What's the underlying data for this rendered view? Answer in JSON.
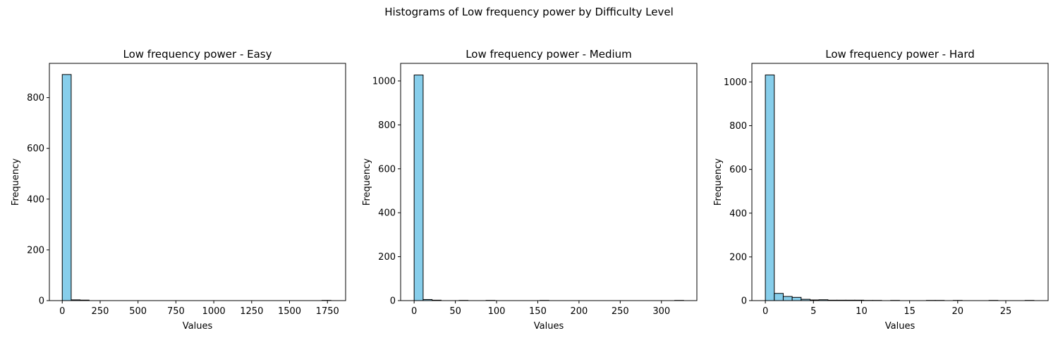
{
  "figure": {
    "suptitle": "Histograms of Low frequency power by Difficulty Level"
  },
  "chart_data": [
    {
      "type": "bar",
      "title": "Low frequency power - Easy",
      "xlabel": "Values",
      "ylabel": "Frequency",
      "xlim": [
        -85,
        1870
      ],
      "ylim": [
        0,
        935
      ],
      "xticks": [
        0,
        250,
        500,
        750,
        1000,
        1250,
        1500,
        1750
      ],
      "yticks": [
        0,
        200,
        400,
        600,
        800
      ],
      "bin_width": 59,
      "bin_starts": [
        0,
        59,
        118,
        1714
      ],
      "values": [
        891,
        3,
        2,
        1
      ],
      "bar_color": "#87ceeb",
      "edge_color": "#000000"
    },
    {
      "type": "bar",
      "title": "Low frequency power - Medium",
      "xlabel": "Values",
      "ylabel": "Frequency",
      "xlim": [
        -16.4,
        343
      ],
      "ylim": [
        0,
        1080
      ],
      "xticks": [
        0,
        50,
        100,
        150,
        200,
        250,
        300
      ],
      "yticks": [
        0,
        200,
        400,
        600,
        800,
        1000
      ],
      "bin_width": 10.9,
      "bin_starts": [
        0,
        10.9,
        21.8,
        54.5,
        87.2,
        152.6,
        316.1
      ],
      "values": [
        1027,
        5,
        2,
        1,
        1,
        1,
        1
      ],
      "bar_color": "#87ceeb",
      "edge_color": "#000000"
    },
    {
      "type": "bar",
      "title": "Low frequency power - Hard",
      "xlabel": "Values",
      "ylabel": "Frequency",
      "xlim": [
        -1.4,
        29.4
      ],
      "ylim": [
        0,
        1085
      ],
      "xticks": [
        0,
        5,
        10,
        15,
        20,
        25
      ],
      "yticks": [
        0,
        200,
        400,
        600,
        800,
        1000
      ],
      "bin_width": 0.93,
      "bin_starts": [
        0,
        0.93,
        1.86,
        2.79,
        3.72,
        4.65,
        5.58,
        6.51,
        7.44,
        8.37,
        9.3,
        10.23,
        11.16,
        13.02,
        16.74,
        17.67,
        19.53,
        23.25,
        27.0
      ],
      "values": [
        1032,
        33,
        19,
        15,
        6,
        3,
        4,
        2,
        2,
        2,
        2,
        1,
        1,
        1,
        1,
        1,
        1,
        1,
        1
      ],
      "bar_color": "#87ceeb",
      "edge_color": "#000000"
    }
  ]
}
